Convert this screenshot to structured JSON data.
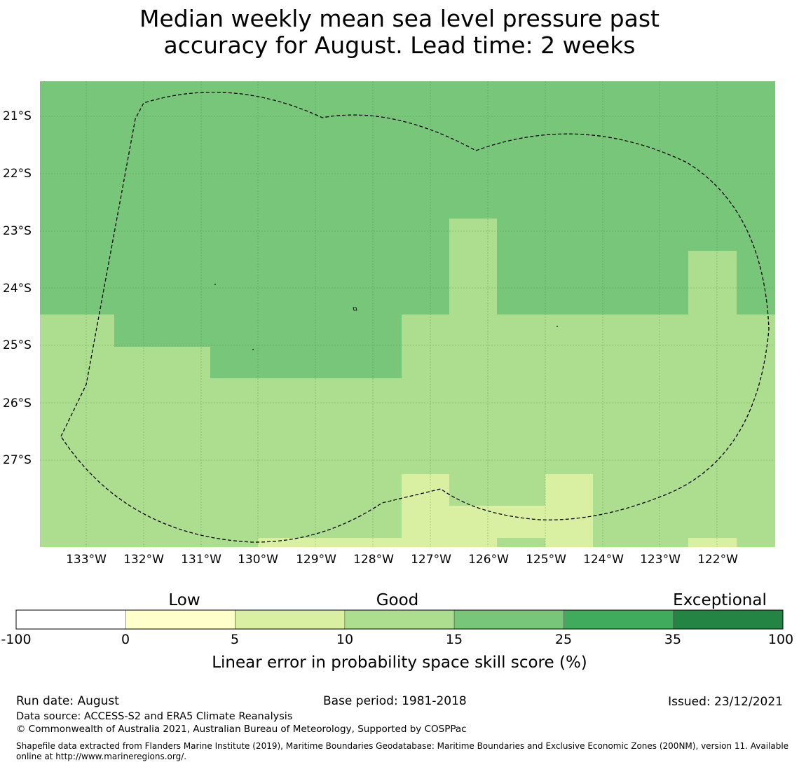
{
  "title_line1": "Median weekly mean sea level pressure past",
  "title_line2": "accuracy for August. Lead time: 2 weeks",
  "map": {
    "lat_ticks": [
      "21°S",
      "22°S",
      "23°S",
      "24°S",
      "25°S",
      "26°S",
      "27°S"
    ],
    "lon_ticks": [
      "133°W",
      "132°W",
      "131°W",
      "130°W",
      "129°W",
      "128°W",
      "127°W",
      "126°W",
      "125°W",
      "124°W",
      "123°W",
      "122°W"
    ],
    "boundary_style": "dashed",
    "cell_colors": {
      "good_high": "#78c679",
      "good_low": "#addd8e",
      "low": "#d9f0a3"
    }
  },
  "colorbar": {
    "categories": [
      "Low",
      "Good",
      "Exceptional"
    ],
    "ticks": [
      "-100",
      "0",
      "5",
      "10",
      "15",
      "25",
      "35",
      "100"
    ],
    "colors": [
      "#ffffff",
      "#ffffcc",
      "#d9f0a3",
      "#addd8e",
      "#78c679",
      "#41ab5d",
      "#238443"
    ],
    "label": "Linear error in probability space skill score (%)"
  },
  "footer": {
    "run_date": "Run date: August",
    "base_period": "Base period: 1981-2018",
    "issued": "Issued: 23/12/2021",
    "data_source": "Data source: ACCESS-S2 and ERA5 Climate Reanalysis",
    "copyright": "© Commonwealth of Australia 2021, Australian Bureau of Meteorology, Supported by COSPPac",
    "shapefile_line1": "Shapefile data extracted from Flanders Marine Institute (2019), Maritime Boundaries Geodatabase: Maritime Boundaries and Exclusive Economic Zones (200NM), version 11. Available",
    "shapefile_line2": "online at http://www.marineregions.org/."
  }
}
